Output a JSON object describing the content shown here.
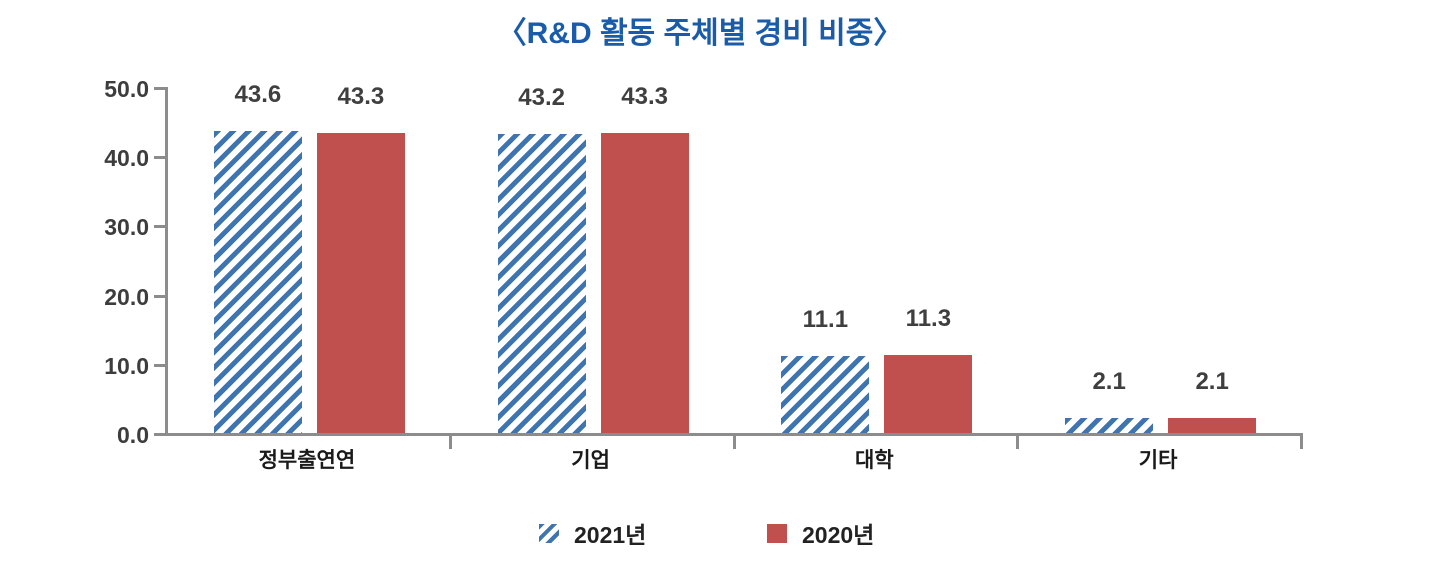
{
  "title": "〈R&D 활동 주체별 경비 비중〉",
  "colors": {
    "title_text": "#1b5caa",
    "axis": "#8c8c8c",
    "value_label_text": "#3f3f3f",
    "category_label_text": "#1a1a1a",
    "series_2021_blue": "#3e74b0",
    "series_2020_red": "#c0504d"
  },
  "legend": {
    "items": [
      {
        "label": "2021년",
        "swatch": "hatched-blue-square"
      },
      {
        "label": "2020년",
        "swatch": "solid-red-square"
      }
    ]
  },
  "chart_data": {
    "type": "bar",
    "title": "〈R&D 활동 주체별 경비 비중〉",
    "categories": [
      "정부출연연",
      "기업",
      "대학",
      "기타"
    ],
    "series": [
      {
        "name": "2021년",
        "style": "hatched",
        "color": "#3e74b0",
        "values": [
          43.6,
          43.2,
          11.1,
          2.1
        ]
      },
      {
        "name": "2020년",
        "style": "solid",
        "color": "#c0504d",
        "values": [
          43.3,
          43.3,
          11.3,
          2.1
        ]
      }
    ],
    "value_labels": [
      [
        "43.6",
        "43.2",
        "11.1",
        "2.1"
      ],
      [
        "43.3",
        "43.3",
        "11.3",
        "2.1"
      ]
    ],
    "xlabel": "",
    "ylabel": "",
    "ylim": [
      0,
      50
    ],
    "ytick_labels": [
      "0.0",
      "10.0",
      "20.0",
      "30.0",
      "40.0",
      "50.0"
    ],
    "grid": false,
    "legend_position": "bottom-center"
  }
}
